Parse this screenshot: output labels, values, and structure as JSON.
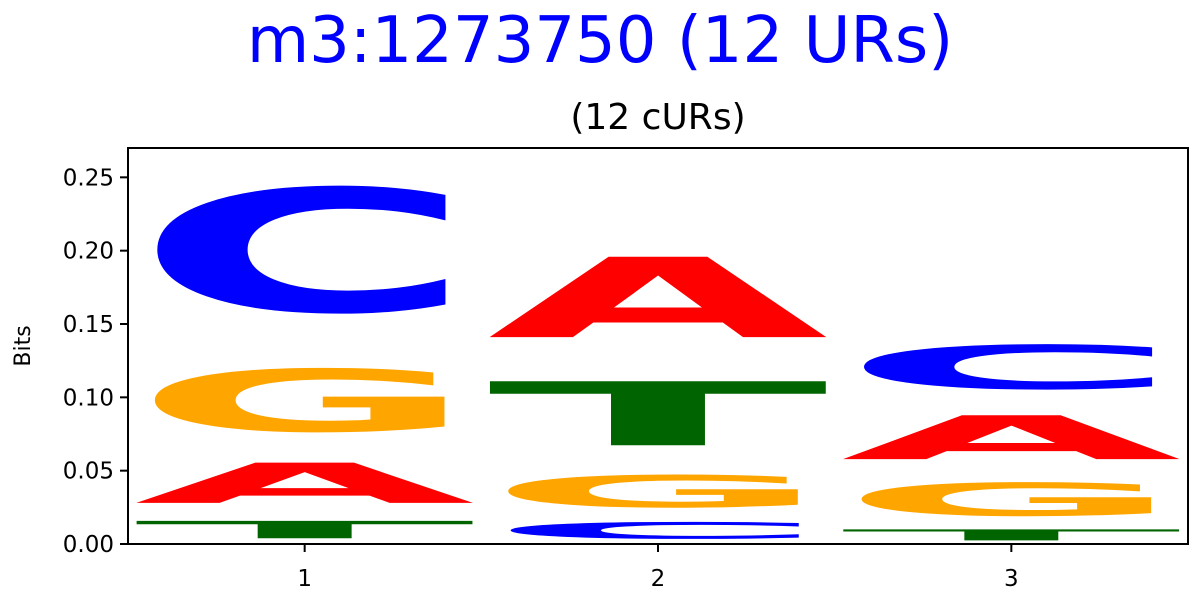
{
  "title": "m3:1273750 (12 URs)",
  "subtitle": "(12 cURs)",
  "colors": {
    "title": "#0000ff",
    "A": "#ff0000",
    "C": "#0000ff",
    "G": "#ffa500",
    "T": "#006400"
  },
  "chart_data": {
    "type": "sequence-logo",
    "ylabel": "Bits",
    "ylim": [
      0,
      0.27
    ],
    "yticks": [
      "0.00",
      "0.05",
      "0.10",
      "0.15",
      "0.20",
      "0.25"
    ],
    "positions": [
      {
        "label": "1",
        "stack": [
          {
            "letter": "T",
            "height": 0.019
          },
          {
            "letter": "A",
            "height": 0.044
          },
          {
            "letter": "G",
            "height": 0.068
          },
          {
            "letter": "C",
            "height": 0.135
          }
        ]
      },
      {
        "label": "2",
        "stack": [
          {
            "letter": "C",
            "height": 0.018
          },
          {
            "letter": "G",
            "height": 0.035
          },
          {
            "letter": "T",
            "height": 0.07
          },
          {
            "letter": "A",
            "height": 0.088
          }
        ]
      },
      {
        "label": "3",
        "stack": [
          {
            "letter": "T",
            "height": 0.012
          },
          {
            "letter": "G",
            "height": 0.036
          },
          {
            "letter": "A",
            "height": 0.048
          },
          {
            "letter": "C",
            "height": 0.048
          }
        ]
      }
    ]
  }
}
